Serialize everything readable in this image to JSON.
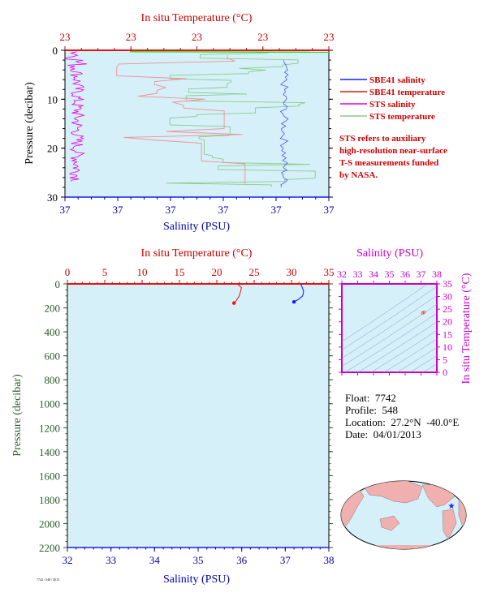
{
  "chart_data": [
    {
      "type": "line",
      "name": "top-profile",
      "top_axis": {
        "label": "In situ Temperature (°C)",
        "ticks": [
          "23",
          "23",
          "23",
          "23",
          "23"
        ]
      },
      "bottom_axis": {
        "label": "Salinity (PSU)",
        "ticks": [
          "37",
          "37",
          "37",
          "37",
          "37",
          "37"
        ]
      },
      "left_axis": {
        "label": "Pressure (decibar)",
        "ticks": [
          0,
          10,
          20,
          30
        ],
        "range": [
          0,
          30
        ],
        "inverted": true
      },
      "legend": [
        {
          "name": "SBE41 salinity",
          "color": "#1a1aff"
        },
        {
          "name": "SBE41 temperature",
          "color": "#ee1111"
        },
        {
          "name": "STS salinity",
          "color": "#e000e0"
        },
        {
          "name": "STS temperature",
          "color": "#88cc88"
        }
      ],
      "note": [
        "STS refers to auxiliary",
        "high-resolution near-surface",
        "T-S measurements funded",
        "by NASA."
      ]
    },
    {
      "type": "line",
      "name": "full-profile",
      "top_axis": {
        "label": "In situ Temperature (°C)",
        "ticks": [
          0,
          5,
          10,
          15,
          20,
          25,
          30,
          35
        ],
        "range": [
          0,
          35
        ]
      },
      "bottom_axis": {
        "label": "Salinity (PSU)",
        "ticks": [
          32,
          33,
          34,
          35,
          36,
          37,
          38
        ],
        "range": [
          32,
          38
        ]
      },
      "left_axis": {
        "label": "Pressure (decibar)",
        "ticks": [
          0,
          200,
          400,
          600,
          800,
          1000,
          1200,
          1400,
          1600,
          1800,
          2000,
          2200
        ],
        "range": [
          0,
          2200
        ],
        "inverted": true
      },
      "series": [
        {
          "name": "temperature",
          "color": "#ee1111",
          "points": [
            [
              22.8,
              0
            ],
            [
              22.9,
              10
            ],
            [
              23.3,
              30
            ],
            [
              23.2,
              60
            ],
            [
              23.0,
              100
            ],
            [
              22.6,
              140
            ],
            [
              22.3,
              160
            ]
          ]
        },
        {
          "name": "salinity",
          "color": "#1a1aff",
          "points": [
            [
              37.35,
              0
            ],
            [
              37.38,
              20
            ],
            [
              37.42,
              60
            ],
            [
              37.4,
              100
            ],
            [
              37.3,
              130
            ],
            [
              37.2,
              150
            ]
          ]
        }
      ]
    },
    {
      "type": "scatter",
      "name": "ts-diagram",
      "top_axis": {
        "label": "Salinity (PSU)",
        "ticks": [
          32,
          33,
          34,
          35,
          36,
          37,
          38
        ],
        "range": [
          32,
          38
        ]
      },
      "right_axis": {
        "label": "In situ Temperature (°C)",
        "ticks": [
          0,
          5,
          10,
          15,
          20,
          25,
          30,
          35
        ],
        "range": [
          0,
          35
        ]
      },
      "points": [
        [
          37.1,
          23.5
        ],
        [
          37.2,
          23.8
        ]
      ]
    }
  ],
  "info": {
    "float": "Float:  7742",
    "profile": "Profile:  548",
    "location": "Location:  27.2°N  -40.0°E",
    "date": "Date:  04/01/2013"
  },
  "footer_tiny": "7742 / 548 / 2013"
}
